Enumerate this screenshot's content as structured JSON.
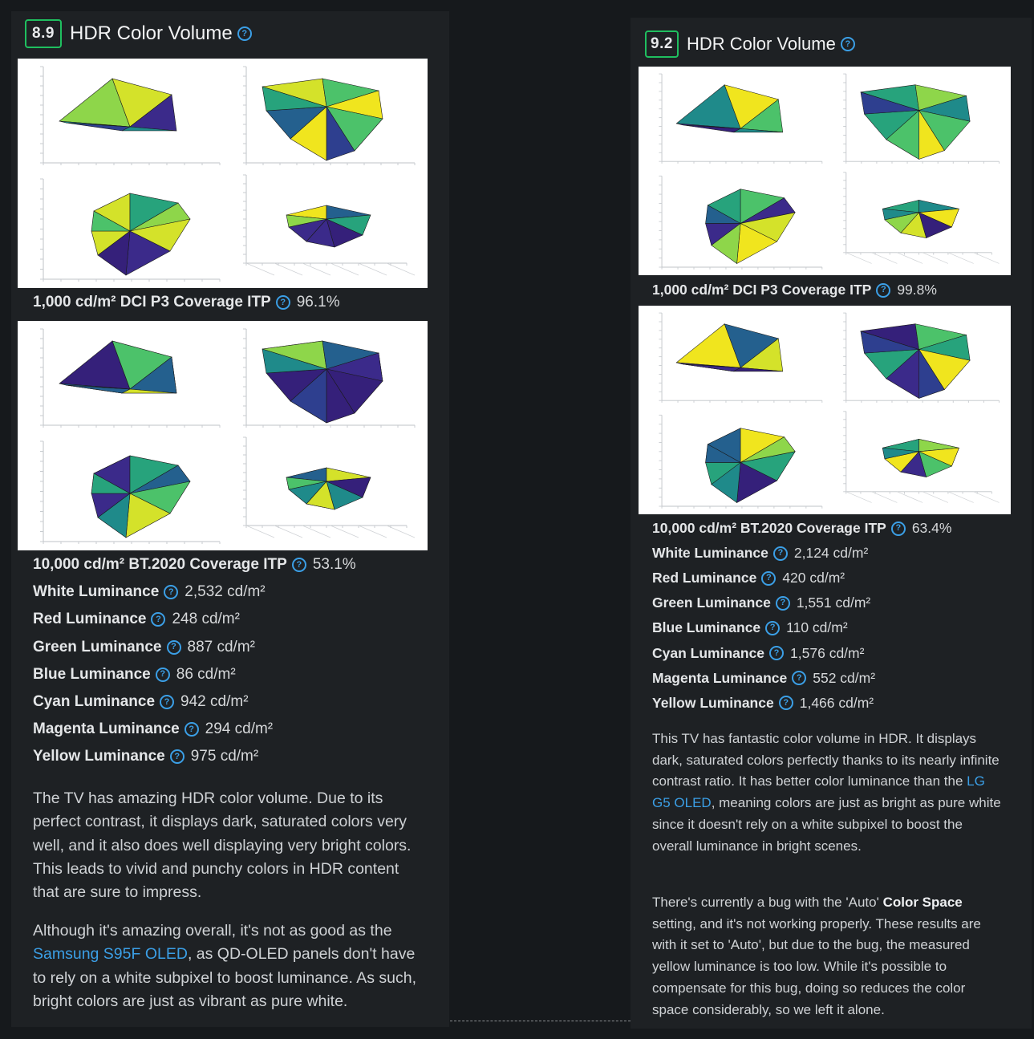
{
  "left": {
    "score": "8.9",
    "title": "HDR Color Volume",
    "help_glyph": "?",
    "dci": {
      "label": "1,000 cd/m² DCI P3 Coverage ITP",
      "value": "96.1%"
    },
    "bt": {
      "label": "10,000 cd/m² BT.2020 Coverage ITP",
      "value": "53.1%"
    },
    "lum": [
      {
        "label": "White Luminance",
        "value": "2,532 cd/m²"
      },
      {
        "label": "Red Luminance",
        "value": "248 cd/m²"
      },
      {
        "label": "Green Luminance",
        "value": "887 cd/m²"
      },
      {
        "label": "Blue Luminance",
        "value": "86 cd/m²"
      },
      {
        "label": "Cyan Luminance",
        "value": "942 cd/m²"
      },
      {
        "label": "Magenta Luminance",
        "value": "294 cd/m²"
      },
      {
        "label": "Yellow Luminance",
        "value": "975 cd/m²"
      }
    ],
    "p1": "The TV has amazing HDR color volume. Due to its perfect contrast, it displays dark, saturated colors very well, and it also does well displaying very bright colors. This leads to vivid and punchy colors in HDR content that are sure to impress.",
    "p2_a": "Although it's amazing overall, it's not as good as the ",
    "p2_link": "Samsung S95F OLED",
    "p2_b": ", as QD-OLED panels don't have to rely on a white subpixel to boost luminance. As such, bright colors are just as vibrant as pure white."
  },
  "right": {
    "score": "9.2",
    "title": "HDR Color Volume",
    "help_glyph": "?",
    "dci": {
      "label": "1,000 cd/m² DCI P3 Coverage ITP",
      "value": "99.8%"
    },
    "bt": {
      "label": "10,000 cd/m² BT.2020 Coverage ITP",
      "value": "63.4%"
    },
    "lum": [
      {
        "label": "White Luminance",
        "value": "2,124 cd/m²"
      },
      {
        "label": "Red Luminance",
        "value": "420 cd/m²"
      },
      {
        "label": "Green Luminance",
        "value": "1,551 cd/m²"
      },
      {
        "label": "Blue Luminance",
        "value": "110 cd/m²"
      },
      {
        "label": "Cyan Luminance",
        "value": "1,576 cd/m²"
      },
      {
        "label": "Magenta Luminance",
        "value": "552 cd/m²"
      },
      {
        "label": "Yellow Luminance",
        "value": "1,466 cd/m²"
      }
    ],
    "p1_a": "This TV has fantastic color volume in HDR. It displays dark, saturated colors perfectly thanks to its nearly infinite contrast ratio. It has better color luminance than the ",
    "p1_link": "LG G5 OLED",
    "p1_b": ", meaning colors are just as bright as pure white since it doesn't rely on a white subpixel to boost the overall luminance in bright scenes.",
    "p2_a": "There's currently a bug with the 'Auto' ",
    "p2_bold": "Color Space",
    "p2_b": " setting, and it's not working properly. These results are with it set to 'Auto', but due to the bug, the measured yellow luminance is too low. While it's possible to compensate for this bug, doing so reduces the color space considerably, so we left it alone."
  },
  "colors": {
    "score_border": "#1fbf5f",
    "link": "#3b9fe6",
    "panel": "#1e2124",
    "page": "#16191c"
  }
}
